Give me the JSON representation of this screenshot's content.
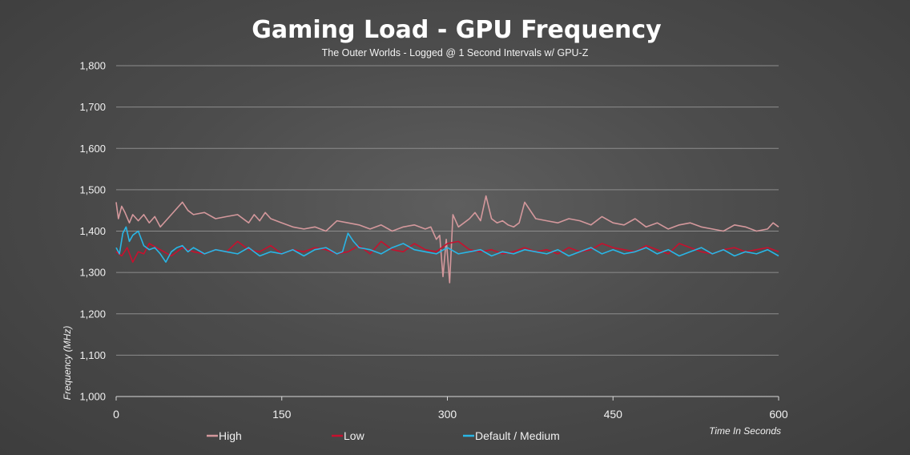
{
  "chart_data": {
    "type": "line",
    "title": "Gaming Load - GPU Frequency",
    "subtitle": "The Outer Worlds - Logged @ 1 Second Intervals w/ GPU-Z",
    "xlabel": "Time In Seconds",
    "ylabel": "Frequency (MHz)",
    "xlim": [
      0,
      600
    ],
    "ylim": [
      1000,
      1800
    ],
    "xticks": [
      0,
      150,
      300,
      450,
      600
    ],
    "xtick_labels": [
      "0",
      "150",
      "300",
      "450",
      "600"
    ],
    "yticks": [
      1000,
      1100,
      1200,
      1300,
      1400,
      1500,
      1600,
      1700,
      1800
    ],
    "ytick_labels": [
      "1,000",
      "1,100",
      "1,200",
      "1,300",
      "1,400",
      "1,500",
      "1,600",
      "1,700",
      "1,800"
    ],
    "grid": "horizontal",
    "legend_position": "bottom",
    "series": [
      {
        "name": "High",
        "color": "#d4989c",
        "x": [
          0,
          2,
          5,
          8,
          12,
          15,
          20,
          25,
          30,
          35,
          40,
          45,
          50,
          55,
          60,
          65,
          70,
          80,
          90,
          100,
          110,
          120,
          125,
          130,
          135,
          140,
          150,
          160,
          170,
          180,
          190,
          200,
          210,
          220,
          230,
          240,
          250,
          260,
          270,
          280,
          285,
          290,
          293,
          296,
          299,
          302,
          305,
          310,
          315,
          320,
          325,
          330,
          335,
          340,
          345,
          350,
          355,
          360,
          365,
          370,
          380,
          390,
          400,
          410,
          420,
          430,
          440,
          450,
          460,
          470,
          480,
          490,
          500,
          510,
          520,
          530,
          540,
          550,
          560,
          570,
          580,
          590,
          595,
          600
        ],
        "y": [
          1470,
          1430,
          1460,
          1445,
          1420,
          1440,
          1425,
          1440,
          1420,
          1435,
          1410,
          1425,
          1440,
          1455,
          1470,
          1450,
          1440,
          1445,
          1430,
          1435,
          1440,
          1420,
          1440,
          1425,
          1445,
          1430,
          1420,
          1410,
          1405,
          1410,
          1400,
          1425,
          1420,
          1415,
          1405,
          1415,
          1400,
          1410,
          1415,
          1405,
          1410,
          1380,
          1390,
          1290,
          1380,
          1275,
          1440,
          1410,
          1420,
          1430,
          1445,
          1425,
          1485,
          1430,
          1420,
          1425,
          1415,
          1410,
          1420,
          1470,
          1430,
          1425,
          1420,
          1430,
          1425,
          1415,
          1435,
          1420,
          1415,
          1430,
          1410,
          1420,
          1405,
          1415,
          1420,
          1410,
          1405,
          1400,
          1415,
          1410,
          1400,
          1405,
          1420,
          1410
        ]
      },
      {
        "name": "Low",
        "color": "#c8102e",
        "x": [
          0,
          5,
          10,
          15,
          20,
          25,
          30,
          40,
          50,
          60,
          70,
          80,
          90,
          100,
          110,
          120,
          130,
          140,
          150,
          160,
          170,
          180,
          190,
          200,
          210,
          220,
          230,
          240,
          250,
          260,
          270,
          280,
          290,
          300,
          310,
          320,
          330,
          340,
          350,
          360,
          370,
          380,
          390,
          400,
          410,
          420,
          430,
          440,
          450,
          460,
          470,
          480,
          490,
          500,
          510,
          520,
          530,
          540,
          550,
          560,
          570,
          580,
          590,
          600
        ],
        "y": [
          1350,
          1340,
          1360,
          1325,
          1350,
          1345,
          1370,
          1355,
          1340,
          1360,
          1350,
          1345,
          1355,
          1350,
          1375,
          1355,
          1350,
          1365,
          1345,
          1355,
          1350,
          1360,
          1355,
          1345,
          1350,
          1365,
          1345,
          1375,
          1355,
          1350,
          1370,
          1355,
          1350,
          1370,
          1375,
          1355,
          1350,
          1355,
          1345,
          1350,
          1360,
          1350,
          1355,
          1345,
          1360,
          1350,
          1355,
          1370,
          1360,
          1355,
          1350,
          1365,
          1355,
          1345,
          1370,
          1360,
          1350,
          1345,
          1355,
          1360,
          1350,
          1355,
          1360,
          1350
        ]
      },
      {
        "name": "Default / Medium",
        "color": "#29b6e6",
        "x": [
          0,
          3,
          6,
          9,
          12,
          15,
          20,
          25,
          30,
          35,
          40,
          45,
          50,
          55,
          60,
          65,
          70,
          80,
          90,
          100,
          110,
          120,
          130,
          140,
          150,
          160,
          170,
          180,
          190,
          200,
          205,
          210,
          215,
          220,
          230,
          240,
          250,
          260,
          270,
          280,
          290,
          300,
          310,
          320,
          330,
          340,
          350,
          360,
          370,
          380,
          390,
          400,
          410,
          420,
          430,
          440,
          450,
          460,
          470,
          480,
          490,
          500,
          510,
          520,
          530,
          540,
          550,
          560,
          570,
          580,
          590,
          600
        ],
        "y": [
          1360,
          1345,
          1395,
          1410,
          1375,
          1390,
          1400,
          1365,
          1355,
          1360,
          1345,
          1325,
          1350,
          1360,
          1365,
          1350,
          1360,
          1345,
          1355,
          1350,
          1345,
          1360,
          1340,
          1350,
          1345,
          1355,
          1340,
          1355,
          1360,
          1345,
          1350,
          1395,
          1375,
          1360,
          1355,
          1345,
          1360,
          1370,
          1355,
          1350,
          1345,
          1360,
          1345,
          1350,
          1355,
          1340,
          1350,
          1345,
          1355,
          1350,
          1345,
          1355,
          1340,
          1350,
          1360,
          1345,
          1355,
          1345,
          1350,
          1360,
          1345,
          1355,
          1340,
          1350,
          1360,
          1345,
          1355,
          1340,
          1350,
          1345,
          1355,
          1340
        ]
      }
    ]
  }
}
